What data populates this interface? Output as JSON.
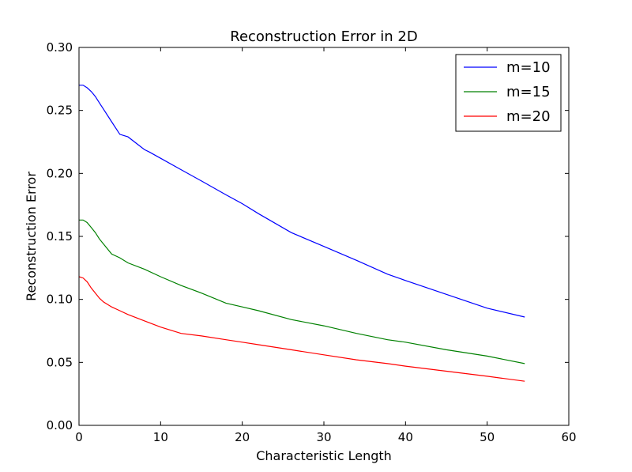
{
  "chart_data": {
    "type": "line",
    "title": "Reconstruction Error in 2D",
    "xlabel": "Characteristic Length",
    "ylabel": "Reconstruction Error",
    "xlim": [
      0,
      60
    ],
    "ylim": [
      0.0,
      0.3
    ],
    "xticks": [
      0,
      10,
      20,
      30,
      40,
      50,
      60
    ],
    "xtick_labels": [
      "0",
      "10",
      "20",
      "30",
      "40",
      "50",
      "60"
    ],
    "yticks": [
      0.0,
      0.05,
      0.1,
      0.15,
      0.2,
      0.25,
      0.3
    ],
    "ytick_labels": [
      "0.00",
      "0.05",
      "0.10",
      "0.15",
      "0.20",
      "0.25",
      "0.30"
    ],
    "grid": false,
    "legend_position": "top-right",
    "series": [
      {
        "name": "m=10",
        "color": "#0000ff",
        "x": [
          0,
          0.5,
          1.0,
          1.5,
          2.0,
          2.5,
          3.0,
          4.0,
          5.0,
          6.0,
          8.0,
          8.6,
          10,
          12.5,
          15,
          18,
          20,
          22,
          26,
          30,
          34,
          37.8,
          40,
          45,
          50,
          54.6
        ],
        "y": [
          0.27,
          0.27,
          0.268,
          0.265,
          0.261,
          0.256,
          0.251,
          0.241,
          0.231,
          0.229,
          0.219,
          0.217,
          0.212,
          0.203,
          0.194,
          0.183,
          0.176,
          0.168,
          0.153,
          0.142,
          0.131,
          0.12,
          0.115,
          0.104,
          0.093,
          0.086
        ]
      },
      {
        "name": "m=15",
        "color": "#008000",
        "x": [
          0,
          0.5,
          1.0,
          1.5,
          2.0,
          2.5,
          3.0,
          4.0,
          5.0,
          6.0,
          8.0,
          10,
          12.5,
          15,
          18,
          20,
          22,
          26,
          30,
          34,
          37.8,
          40,
          45,
          50,
          54.6
        ],
        "y": [
          0.163,
          0.163,
          0.161,
          0.157,
          0.153,
          0.148,
          0.144,
          0.136,
          0.133,
          0.129,
          0.124,
          0.118,
          0.111,
          0.105,
          0.097,
          0.094,
          0.091,
          0.084,
          0.079,
          0.073,
          0.068,
          0.066,
          0.06,
          0.055,
          0.049
        ]
      },
      {
        "name": "m=20",
        "color": "#ff0000",
        "x": [
          0,
          0.5,
          1.0,
          1.5,
          2.0,
          2.5,
          3.0,
          4.0,
          5.0,
          6.0,
          8.0,
          10,
          12.5,
          15,
          18,
          20,
          22,
          26,
          30,
          34,
          37.8,
          40,
          45,
          50,
          54.6
        ],
        "y": [
          0.118,
          0.117,
          0.114,
          0.109,
          0.105,
          0.101,
          0.098,
          0.094,
          0.091,
          0.088,
          0.083,
          0.078,
          0.073,
          0.071,
          0.068,
          0.066,
          0.064,
          0.06,
          0.056,
          0.052,
          0.049,
          0.047,
          0.043,
          0.039,
          0.035
        ]
      }
    ]
  }
}
